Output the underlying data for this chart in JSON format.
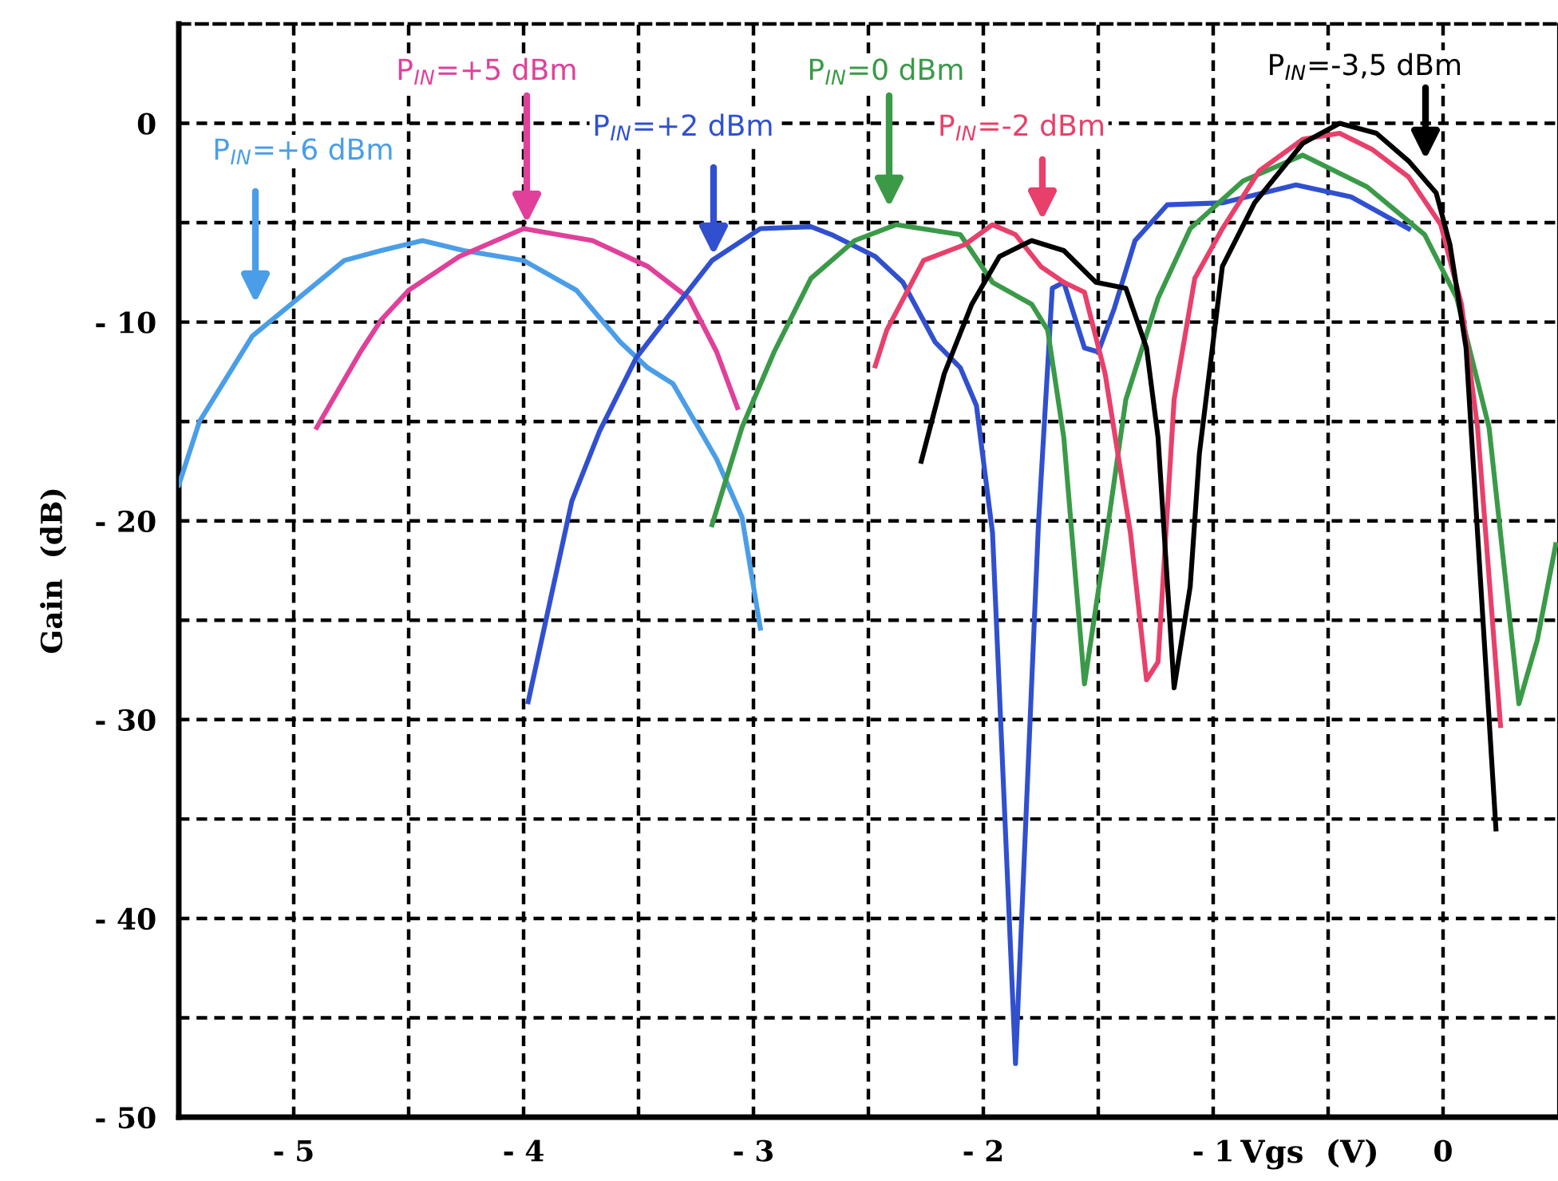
{
  "chart_data": {
    "type": "line",
    "xlabel": "Vgs  (V)",
    "ylabel": "Gain  (dB)",
    "xlim": [
      -5.5,
      0.5
    ],
    "ylim": [
      -50,
      5
    ],
    "xticks": [
      {
        "value": -5,
        "label": "- 5"
      },
      {
        "value": -4.5,
        "label": null
      },
      {
        "value": -4,
        "label": "- 4"
      },
      {
        "value": -3.5,
        "label": null
      },
      {
        "value": -3,
        "label": "- 3"
      },
      {
        "value": -2.5,
        "label": null
      },
      {
        "value": -2,
        "label": "- 2"
      },
      {
        "value": -1.5,
        "label": null
      },
      {
        "value": -1,
        "label": "- 1"
      },
      {
        "value": -0.5,
        "label": null
      },
      0
    ],
    "yticks": [
      {
        "value": -50,
        "label": "- 50"
      },
      {
        "value": -45,
        "label": null
      },
      {
        "value": -40,
        "label": "- 40"
      },
      {
        "value": -35,
        "label": null
      },
      {
        "value": -30,
        "label": "- 30"
      },
      {
        "value": -25,
        "label": null
      },
      {
        "value": -20,
        "label": "- 20"
      },
      {
        "value": -15,
        "label": null
      },
      {
        "value": -10,
        "label": "- 10"
      },
      {
        "value": -5,
        "label": null
      },
      0
    ],
    "grid": true,
    "line_style": "solid",
    "series": [
      {
        "color": "#4a9ee8",
        "x": [
          -5.5,
          -5.41,
          -5.18,
          -4.99,
          -4.78,
          -4.62,
          -4.44,
          -4.26,
          -4.0,
          -3.77,
          -3.58,
          -3.46,
          -3.35,
          -3.16,
          -3.05,
          -2.97
        ],
        "values": [
          -18.2,
          -15.0,
          -10.7,
          -8.9,
          -6.9,
          -6.4,
          -5.9,
          -6.4,
          -6.9,
          -8.4,
          -11.0,
          -12.3,
          -13.1,
          -16.9,
          -19.8,
          -25.4
        ]
      },
      {
        "color": "#e0409a",
        "x": [
          -4.9,
          -4.71,
          -4.62,
          -4.5,
          -4.28,
          -4.0,
          -3.7,
          -3.46,
          -3.28,
          -3.16,
          -3.07
        ],
        "values": [
          -15.3,
          -11.5,
          -9.9,
          -8.4,
          -6.7,
          -5.3,
          -5.9,
          -7.2,
          -8.8,
          -11.5,
          -14.3
        ]
      },
      {
        "color": "#3050d0",
        "x": [
          -3.98,
          -3.79,
          -3.67,
          -3.51,
          -3.37,
          -3.18,
          -2.97,
          -2.75,
          -2.66,
          -2.47,
          -2.35,
          -2.21,
          -2.1,
          -2.03,
          -1.96,
          -1.86,
          -1.76,
          -1.7,
          -1.65,
          -1.56,
          -1.5,
          -1.43,
          -1.34,
          -1.2,
          -0.96,
          -0.64,
          -0.4,
          -0.15
        ],
        "values": [
          -29.1,
          -19.0,
          -15.5,
          -11.8,
          -9.7,
          -6.9,
          -5.3,
          -5.2,
          -5.6,
          -6.7,
          -8.0,
          -11.0,
          -12.3,
          -14.2,
          -20.6,
          -47.3,
          -20.1,
          -8.3,
          -8.0,
          -11.3,
          -11.5,
          -9.3,
          -5.9,
          -4.1,
          -4.0,
          -3.1,
          -3.7,
          -5.3
        ]
      },
      {
        "color": "#3a9a48",
        "x": [
          -3.18,
          -3.05,
          -2.91,
          -2.75,
          -2.56,
          -2.38,
          -2.1,
          -1.96,
          -1.79,
          -1.72,
          -1.65,
          -1.56,
          -1.47,
          -1.38,
          -1.24,
          -1.1,
          -0.87,
          -0.61,
          -0.33,
          -0.08,
          0.06,
          0.2,
          0.33,
          0.41,
          0.49
        ],
        "values": [
          -20.2,
          -15.3,
          -11.5,
          -7.8,
          -5.9,
          -5.1,
          -5.6,
          -8.0,
          -9.1,
          -10.4,
          -15.8,
          -28.2,
          -21.2,
          -13.9,
          -8.8,
          -5.3,
          -2.9,
          -1.6,
          -3.2,
          -5.6,
          -8.8,
          -15.3,
          -29.2,
          -26.0,
          -21.2
        ]
      },
      {
        "color": "#e8406a",
        "x": [
          -2.47,
          -2.42,
          -2.26,
          -2.08,
          -1.96,
          -1.86,
          -1.75,
          -1.65,
          -1.56,
          -1.47,
          -1.36,
          -1.29,
          -1.24,
          -1.17,
          -1.08,
          -0.96,
          -0.8,
          -0.61,
          -0.45,
          -0.31,
          -0.15,
          -0.01,
          0.08,
          0.15,
          0.25
        ],
        "values": [
          -12.2,
          -10.4,
          -6.9,
          -6.1,
          -5.1,
          -5.6,
          -7.2,
          -8.0,
          -8.5,
          -12.6,
          -20.6,
          -28.0,
          -27.1,
          -13.9,
          -7.8,
          -5.3,
          -2.4,
          -0.8,
          -0.5,
          -1.3,
          -2.7,
          -5.1,
          -9.1,
          -15.3,
          -30.3
        ]
      },
      {
        "color": "#000000",
        "x": [
          -2.27,
          -2.17,
          -2.05,
          -1.93,
          -1.79,
          -1.65,
          -1.51,
          -1.38,
          -1.29,
          -1.24,
          -1.17,
          -1.1,
          -1.06,
          -0.96,
          -0.82,
          -0.61,
          -0.45,
          -0.29,
          -0.15,
          -0.03,
          0.03,
          0.1,
          0.23
        ],
        "values": [
          -17.0,
          -12.6,
          -9.1,
          -6.7,
          -5.9,
          -6.4,
          -8.0,
          -8.3,
          -11.3,
          -15.8,
          -28.4,
          -23.3,
          -16.6,
          -7.2,
          -4.0,
          -1.0,
          0.0,
          -0.5,
          -1.9,
          -3.5,
          -6.1,
          -11.3,
          -35.5
        ]
      }
    ],
    "annotations": [
      "P$_{IN}$=+6 dBm",
      "P$_{IN}$=+5 dBm",
      "P$_{IN}$=+2 dBm",
      "P$_{IN}$=0 dBm",
      "P$_{IN}$=-2 dBm",
      "P$_{IN}$=-3,5 dBm"
    ]
  }
}
